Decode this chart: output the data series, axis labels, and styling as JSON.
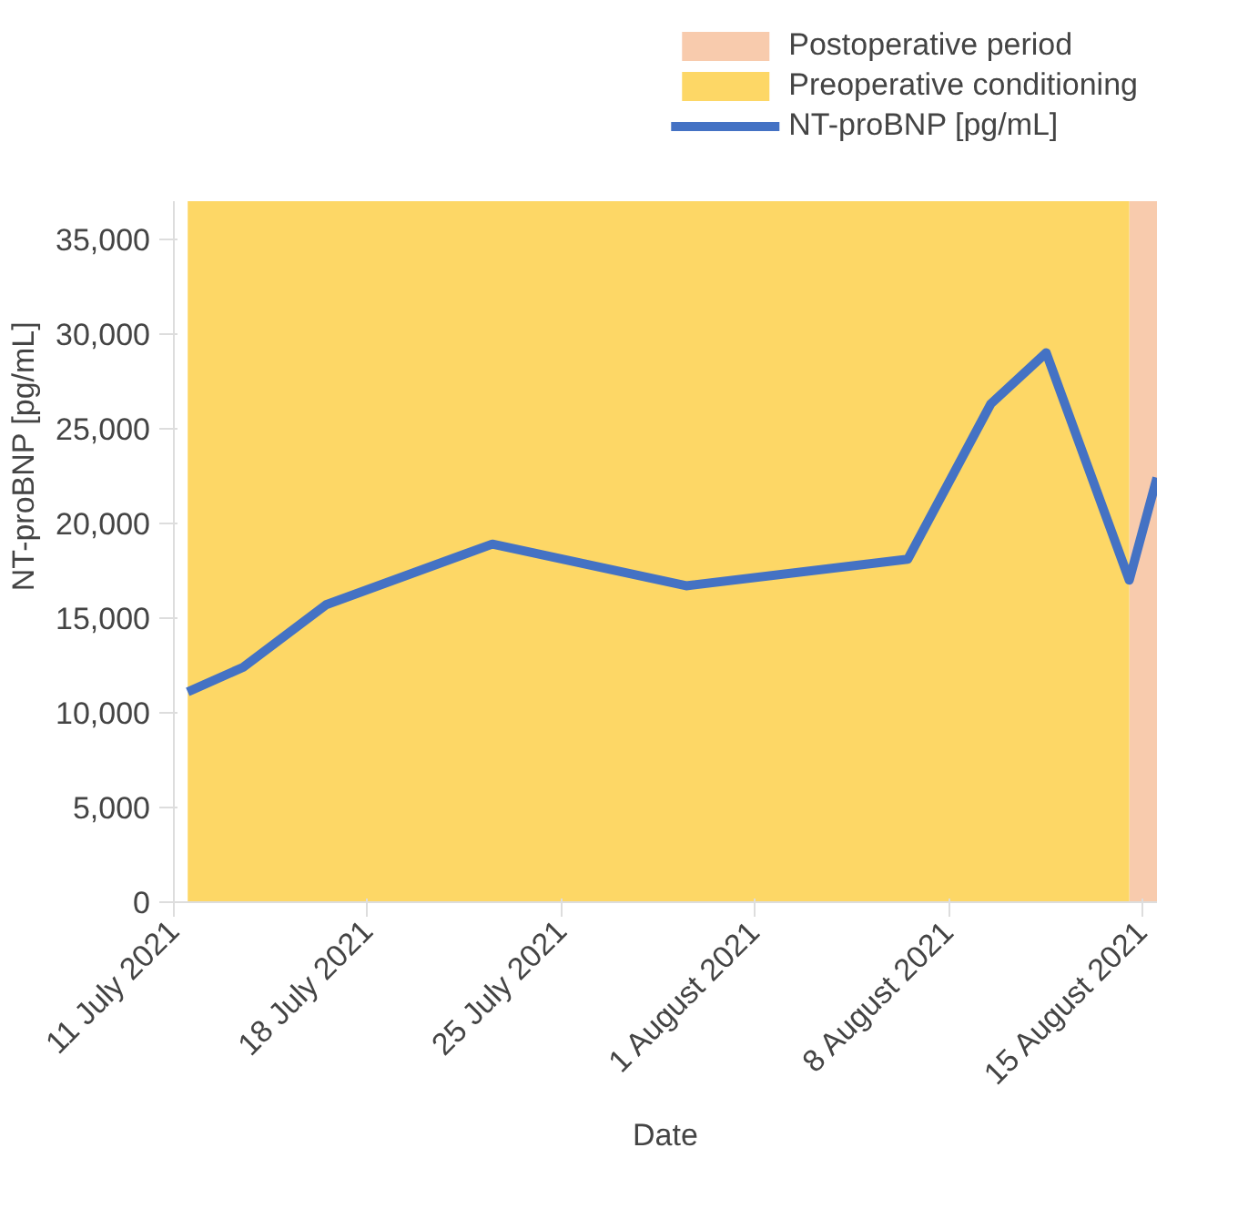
{
  "chart_data": {
    "type": "line",
    "xlabel": "Date",
    "ylabel": "NT-proBNP [pg/mL]",
    "x": [
      "2021-07-11T12:00",
      "2021-07-13T12:00",
      "2021-07-16T12:00",
      "2021-07-22T12:00",
      "2021-07-29T12:00",
      "2021-08-06T12:00",
      "2021-08-09T12:00",
      "2021-08-11T12:00",
      "2021-08-14T12:00",
      "2021-08-15T12:00"
    ],
    "series": [
      {
        "name": "NT-proBNP [pg/mL]",
        "color": "#4472c4",
        "values": [
          11100,
          12400,
          15700,
          18900,
          16700,
          18100,
          26300,
          29000,
          17000,
          22400
        ]
      }
    ],
    "bands": [
      {
        "axis": "x",
        "from": "2021-08-14T12:00",
        "to": "2021-08-15T12:00",
        "label": "Postoperative period",
        "color": "#f8cbad"
      },
      {
        "axis": "x",
        "from": "2021-07-11T12:00",
        "to": "2021-08-14T12:00",
        "label": "Preoperative conditioning",
        "color": "#fdd766"
      }
    ],
    "xlim": [
      "2021-07-11",
      "2021-08-15T12:00"
    ],
    "xticks": [
      {
        "value": "2021-07-11",
        "label": "11 July 2021"
      },
      {
        "value": "2021-07-18",
        "label": "18 July 2021"
      },
      {
        "value": "2021-07-25",
        "label": "25 July 2021"
      },
      {
        "value": "2021-08-01",
        "label": "1 August 2021"
      },
      {
        "value": "2021-08-08",
        "label": "8 August 2021"
      },
      {
        "value": "2021-08-15",
        "label": "15 August 2021"
      }
    ],
    "ylim": [
      0,
      37000
    ],
    "yticks": [
      0,
      {
        "value": 5000,
        "label": "5,000"
      },
      {
        "value": 10000,
        "label": "10,000"
      },
      {
        "value": 15000,
        "label": "15,000"
      },
      {
        "value": 20000,
        "label": "20,000"
      },
      {
        "value": 25000,
        "label": "25,000"
      },
      {
        "value": 30000,
        "label": "30,000"
      },
      {
        "value": 35000,
        "label": "35,000"
      }
    ],
    "grid": false,
    "legend": "top right",
    "line_style": "solid",
    "marker": "none"
  }
}
